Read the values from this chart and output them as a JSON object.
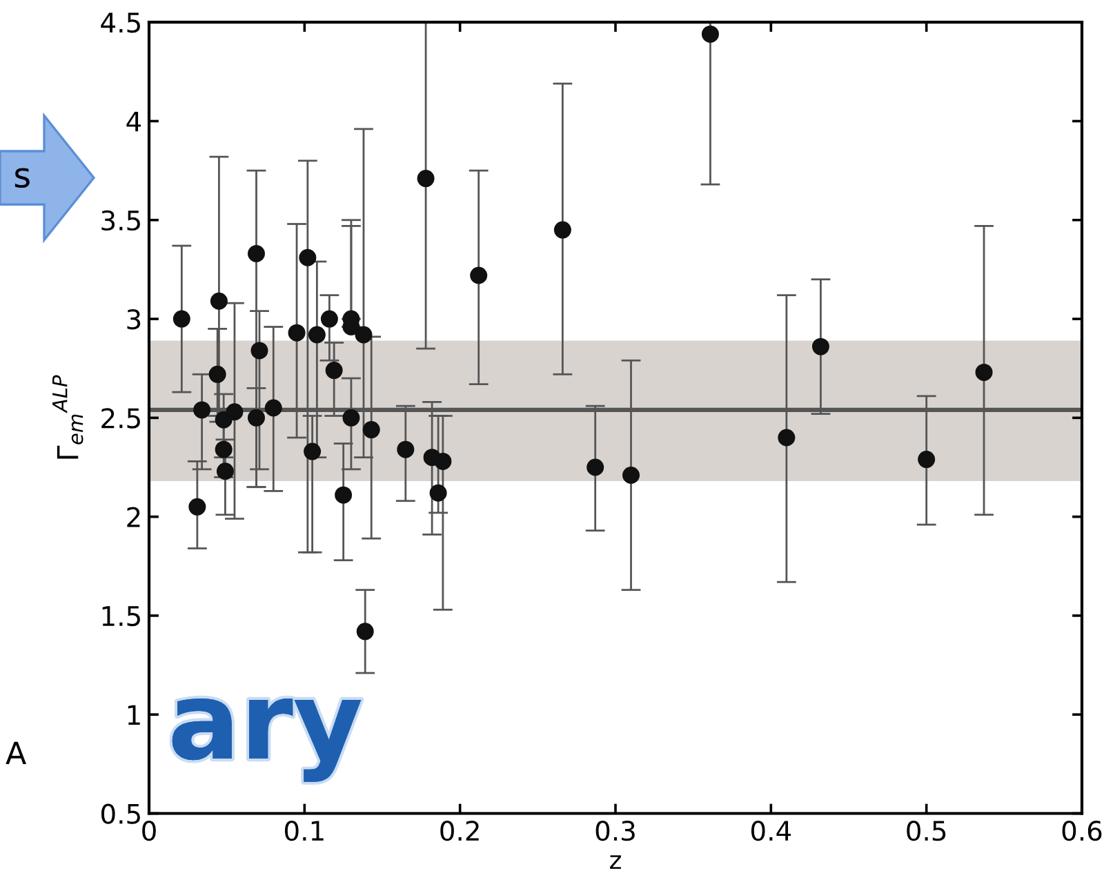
{
  "chart_data": {
    "type": "scatter",
    "xlabel": "z",
    "ylabel": "Γ$_{em}$$^{ALP}$",
    "xlim": [
      0,
      0.6
    ],
    "ylim": [
      0.5,
      4.5
    ],
    "xticks": [
      0,
      0.1,
      0.2,
      0.3,
      0.4,
      0.5,
      0.6
    ],
    "yticks": [
      0.5,
      1,
      1.5,
      2,
      2.5,
      3,
      3.5,
      4,
      4.5
    ],
    "grid": false,
    "marker": "circle",
    "ref_lines": [
      {
        "axis": "y",
        "value": 2.54,
        "label": null,
        "color": "#555555",
        "line_style": "solid"
      }
    ],
    "bands": [
      {
        "axis": "y",
        "from": 2.18,
        "to": 2.89,
        "label": null,
        "color": "#d9d3d0"
      }
    ],
    "annotations": [
      "s",
      "ary",
      "A"
    ],
    "series": [
      {
        "color": "#111111",
        "x": [
          0.021,
          0.031,
          0.034,
          0.044,
          0.045,
          0.048,
          0.048,
          0.049,
          0.055,
          0.069,
          0.071,
          0.069,
          0.08,
          0.095,
          0.102,
          0.105,
          0.108,
          0.116,
          0.119,
          0.125,
          0.13,
          0.13,
          0.13,
          0.138,
          0.143,
          0.139,
          0.165,
          0.178,
          0.182,
          0.186,
          0.189,
          0.212,
          0.266,
          0.287,
          0.31,
          0.361,
          0.41,
          0.432,
          0.5,
          0.537
        ],
        "values": [
          3.0,
          2.05,
          2.54,
          2.72,
          3.09,
          2.49,
          2.34,
          2.23,
          2.53,
          3.33,
          2.84,
          2.5,
          2.55,
          2.93,
          3.31,
          2.33,
          2.92,
          3.0,
          2.74,
          2.11,
          3.0,
          2.96,
          2.5,
          2.92,
          2.44,
          1.42,
          2.34,
          3.71,
          2.3,
          2.12,
          2.28,
          3.22,
          3.45,
          2.25,
          2.21,
          4.44,
          2.4,
          2.86,
          2.29,
          2.73
        ],
        "errors": [
          [
            2.63,
            3.37
          ],
          [
            1.84,
            2.28
          ],
          [
            2.24,
            2.72
          ],
          [
            2.51,
            2.95
          ],
          [
            2.48,
            3.82
          ],
          [
            2.3,
            2.62
          ],
          [
            2.2,
            2.51
          ],
          [
            2.01,
            2.39
          ],
          [
            1.99,
            3.08
          ],
          [
            2.15,
            3.75
          ],
          [
            2.24,
            3.04
          ],
          [
            2.15,
            2.65
          ],
          [
            2.13,
            2.96
          ],
          [
            2.4,
            3.48
          ],
          [
            1.82,
            3.8
          ],
          [
            1.82,
            2.51
          ],
          [
            2.3,
            3.29
          ],
          [
            2.79,
            3.12
          ],
          [
            2.51,
            2.88
          ],
          [
            1.78,
            2.37
          ],
          [
            3.0,
            3.5
          ],
          [
            2.96,
            3.47
          ],
          [
            2.24,
            2.7
          ],
          [
            2.3,
            3.96
          ],
          [
            1.89,
            2.91
          ],
          [
            1.21,
            1.63
          ],
          [
            2.08,
            2.56
          ],
          [
            2.85,
            4.5
          ],
          [
            1.91,
            2.58
          ],
          [
            2.02,
            2.51
          ],
          [
            1.53,
            2.51
          ],
          [
            2.67,
            3.75
          ],
          [
            2.72,
            4.19
          ],
          [
            1.93,
            2.56
          ],
          [
            1.63,
            2.79
          ],
          [
            3.68,
            4.5
          ],
          [
            1.67,
            3.12
          ],
          [
            2.52,
            3.2
          ],
          [
            1.96,
            2.61
          ],
          [
            2.01,
            3.47
          ]
        ]
      }
    ]
  }
}
